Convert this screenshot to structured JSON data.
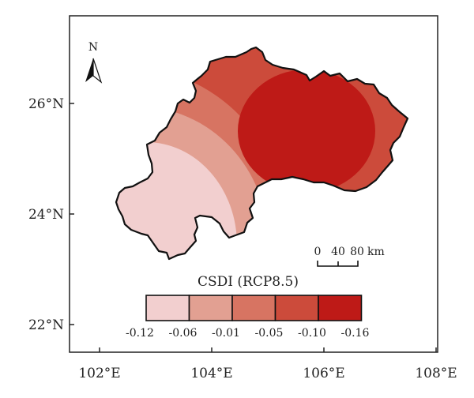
{
  "map": {
    "legend_title": "CSDI (RCP8.5)",
    "x_ticks": [
      "102°E",
      "104°E",
      "106°E",
      "108°E"
    ],
    "y_ticks": [
      "26°N",
      "24°N",
      "22°N"
    ],
    "north_label": "N",
    "scale_bar": {
      "labels": [
        "0",
        "40",
        "80"
      ],
      "unit": "km"
    },
    "legend": {
      "classes": [
        {
          "color": "#f2cfcf"
        },
        {
          "color": "#e2a092"
        },
        {
          "color": "#d77462"
        },
        {
          "color": "#cc4b3b"
        },
        {
          "color": "#be1a17"
        }
      ],
      "break_labels": [
        "-0.12",
        "-0.06",
        "-0.01",
        "-0.05",
        "-0.10",
        "-0.16"
      ]
    }
  }
}
